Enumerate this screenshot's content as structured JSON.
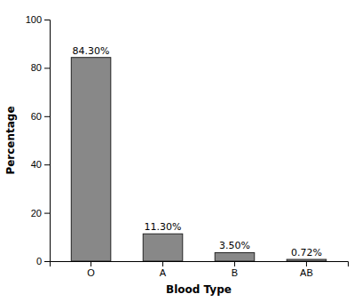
{
  "chart_data": {
    "type": "bar",
    "categories": [
      "O",
      "A",
      "B",
      "AB"
    ],
    "values": [
      84.3,
      11.3,
      3.5,
      0.72
    ],
    "value_labels": [
      "84.30%",
      "11.30%",
      "3.50%",
      "0.72%"
    ],
    "data_labels": true,
    "color": "#888888",
    "xlabel": "Blood Type",
    "ylabel": "Percentage",
    "ylim": [
      0,
      100
    ],
    "yticks": [
      0,
      20,
      40,
      60,
      80,
      100
    ],
    "grid": false
  }
}
